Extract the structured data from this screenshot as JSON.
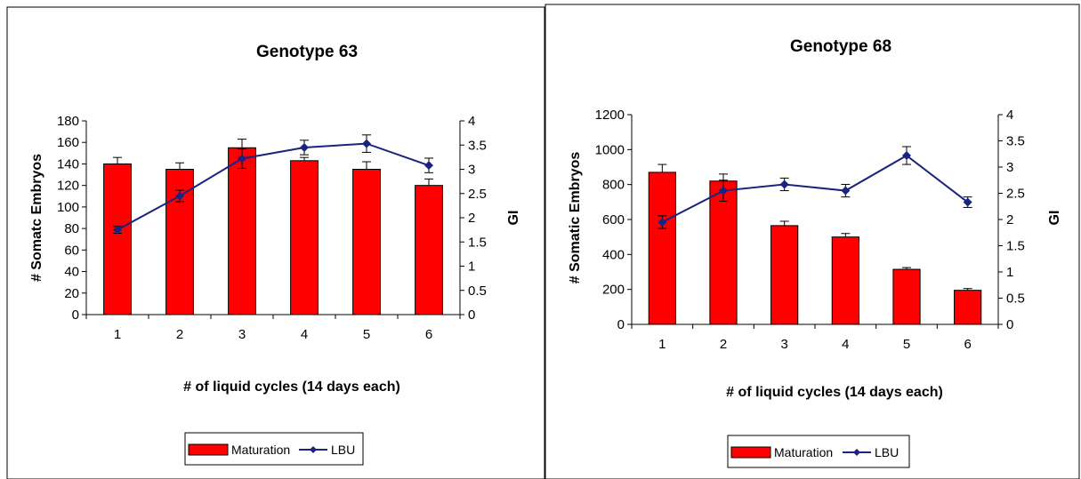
{
  "chart_data": [
    {
      "type": "bar",
      "title": "Genotype 63",
      "xlabel": "# of liquid cycles (14 days each)",
      "ylabel": "# Somatc Embryos",
      "y2label": "GI",
      "categories": [
        "1",
        "2",
        "3",
        "4",
        "5",
        "6"
      ],
      "ylim": [
        0,
        180
      ],
      "y_ticks": [
        "0",
        "20",
        "40",
        "60",
        "80",
        "100",
        "120",
        "140",
        "160",
        "180"
      ],
      "y2lim": [
        0,
        4
      ],
      "y2_ticks": [
        "0",
        "0.5",
        "1",
        "1.5",
        "2",
        "2.5",
        "3",
        "3.5",
        "4"
      ],
      "series": [
        {
          "name": "Maturation",
          "kind": "bar",
          "axis": "left",
          "color": "#ff0000",
          "values": [
            140,
            135,
            155,
            143,
            135,
            120
          ],
          "errors": [
            6,
            6,
            8,
            3,
            7,
            6
          ]
        },
        {
          "name": "LBU",
          "kind": "line",
          "axis": "right",
          "color": "#1a237e",
          "values": [
            1.75,
            2.45,
            3.22,
            3.45,
            3.53,
            3.08
          ],
          "errors": [
            0.07,
            0.12,
            0.2,
            0.15,
            0.18,
            0.15
          ]
        }
      ],
      "legend": "bottom",
      "grid": false
    },
    {
      "type": "bar",
      "title": "Genotype 68",
      "xlabel": "# of liquid cycles (14 days each)",
      "ylabel": "# Somatic Embryos",
      "y2label": "GI",
      "categories": [
        "1",
        "2",
        "3",
        "4",
        "5",
        "6"
      ],
      "ylim": [
        0,
        1200
      ],
      "y_ticks": [
        "0",
        "200",
        "400",
        "600",
        "800",
        "1000",
        "1200"
      ],
      "y2lim": [
        0,
        4
      ],
      "y2_ticks": [
        "0",
        "0.5",
        "1",
        "1.5",
        "2",
        "2.5",
        "3",
        "3.5",
        "4"
      ],
      "series": [
        {
          "name": "Maturation",
          "kind": "bar",
          "axis": "left",
          "color": "#ff0000",
          "values": [
            870,
            820,
            565,
            500,
            315,
            195
          ],
          "errors": [
            45,
            40,
            25,
            20,
            10,
            10
          ]
        },
        {
          "name": "LBU",
          "kind": "line",
          "axis": "right",
          "color": "#1a237e",
          "values": [
            1.95,
            2.55,
            2.67,
            2.55,
            3.22,
            2.33
          ],
          "errors": [
            0.12,
            0.2,
            0.12,
            0.12,
            0.17,
            0.1
          ]
        }
      ],
      "legend": "bottom",
      "grid": false
    }
  ]
}
